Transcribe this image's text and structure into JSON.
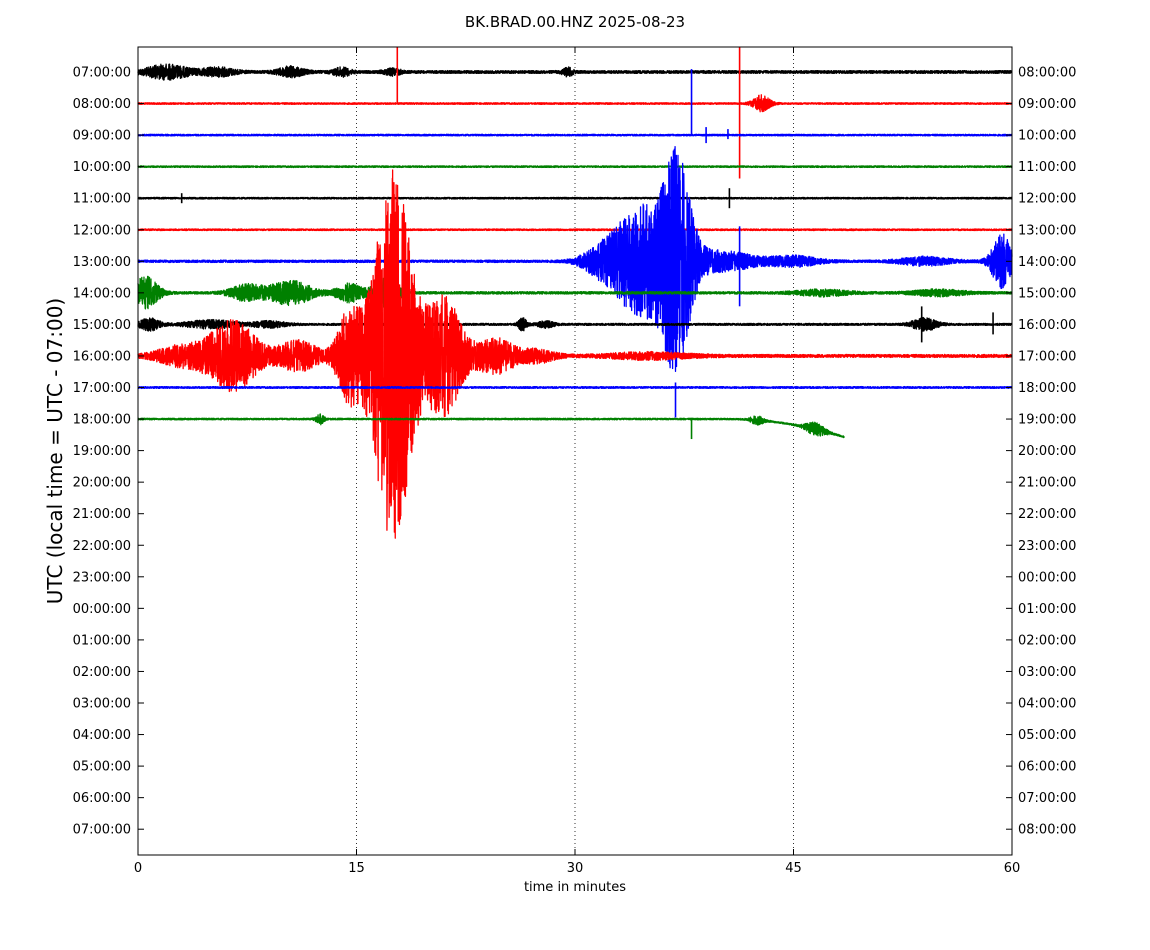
{
  "chart_data": {
    "type": "line",
    "title": "BK.BRAD.00.HNZ 2025-08-23",
    "xlabel": "time in minutes",
    "ylabel": "UTC (local time = UTC - 07:00)",
    "xlim": [
      0,
      60
    ],
    "x_ticks": [
      0,
      15,
      30,
      45,
      60
    ],
    "grid": "vertical dotted",
    "left_tick_labels": [
      "07:00:00",
      "08:00:00",
      "09:00:00",
      "10:00:00",
      "11:00:00",
      "12:00:00",
      "13:00:00",
      "14:00:00",
      "15:00:00",
      "16:00:00",
      "17:00:00",
      "18:00:00",
      "19:00:00",
      "20:00:00",
      "21:00:00",
      "22:00:00",
      "23:00:00",
      "00:00:00",
      "01:00:00",
      "02:00:00",
      "03:00:00",
      "04:00:00",
      "05:00:00",
      "06:00:00",
      "07:00:00"
    ],
    "right_tick_labels": [
      "08:00:00",
      "09:00:00",
      "10:00:00",
      "11:00:00",
      "12:00:00",
      "13:00:00",
      "14:00:00",
      "15:00:00",
      "16:00:00",
      "17:00:00",
      "18:00:00",
      "19:00:00",
      "20:00:00",
      "21:00:00",
      "22:00:00",
      "23:00:00",
      "00:00:00",
      "01:00:00",
      "02:00:00",
      "03:00:00",
      "04:00:00",
      "05:00:00",
      "06:00:00",
      "07:00:00",
      "08:00:00"
    ],
    "trace_colors": [
      "#000000",
      "#ff0000",
      "#0000ff",
      "#008000"
    ],
    "series": [
      {
        "row": 0,
        "hour": "07:00:00",
        "color": "#000000",
        "end_min": 60,
        "noise": 1.4,
        "events": [
          {
            "t": 2,
            "amp": 7,
            "dur": 2.5
          },
          {
            "t": 5.5,
            "amp": 4,
            "dur": 2
          },
          {
            "t": 10.5,
            "amp": 5,
            "dur": 1.5
          },
          {
            "t": 14,
            "amp": 4,
            "dur": 1
          },
          {
            "t": 17.5,
            "amp": 3,
            "dur": 1
          },
          {
            "t": 29.5,
            "amp": 4,
            "dur": 0.6
          }
        ]
      },
      {
        "row": 1,
        "hour": "08:00:00",
        "color": "#ff0000",
        "end_min": 60,
        "noise": 0.8,
        "events": [
          {
            "t": 42.8,
            "amp": 8,
            "dur": 1.0
          }
        ],
        "spikes": [
          {
            "t": 17.8,
            "up": 60,
            "down": 0
          },
          {
            "t": 41.3,
            "up": 60,
            "down": 75
          }
        ]
      },
      {
        "row": 2,
        "hour": "09:00:00",
        "color": "#0000ff",
        "end_min": 60,
        "noise": 0.8,
        "events": [],
        "spikes": [
          {
            "t": 38,
            "up": 66,
            "down": 0
          },
          {
            "t": 39,
            "up": 8,
            "down": 8
          },
          {
            "t": 40.5,
            "up": 6,
            "down": 4
          }
        ]
      },
      {
        "row": 3,
        "hour": "10:00:00",
        "color": "#008000",
        "end_min": 60,
        "noise": 0.8,
        "events": []
      },
      {
        "row": 4,
        "hour": "11:00:00",
        "color": "#000000",
        "end_min": 60,
        "noise": 0.8,
        "events": [],
        "spikes": [
          {
            "t": 3,
            "up": 5,
            "down": 5
          },
          {
            "t": 40.6,
            "up": 10,
            "down": 10
          }
        ]
      },
      {
        "row": 5,
        "hour": "12:00:00",
        "color": "#ff0000",
        "end_min": 60,
        "noise": 0.8,
        "events": []
      },
      {
        "row": 6,
        "hour": "13:00:00",
        "color": "#0000ff",
        "end_min": 60,
        "noise": 1.2,
        "events": [
          {
            "t": 31.5,
            "amp": 8,
            "dur": 2
          },
          {
            "t": 34.5,
            "amp": 55,
            "dur": 3.5
          },
          {
            "t": 37,
            "amp": 95,
            "dur": 1.8
          },
          {
            "t": 40,
            "amp": 10,
            "dur": 4
          },
          {
            "t": 45,
            "amp": 5,
            "dur": 3
          },
          {
            "t": 54,
            "amp": 4,
            "dur": 3
          },
          {
            "t": 59.3,
            "amp": 28,
            "dur": 1.2
          }
        ],
        "spikes": [
          {
            "t": 41.3,
            "up": 35,
            "down": 45
          }
        ]
      },
      {
        "row": 7,
        "hour": "14:00:00",
        "color": "#008000",
        "end_min": 60,
        "noise": 1.2,
        "events": [
          {
            "t": 0.5,
            "amp": 16,
            "dur": 1.5
          },
          {
            "t": 7.5,
            "amp": 8,
            "dur": 2
          },
          {
            "t": 10.5,
            "amp": 12,
            "dur": 2.5
          },
          {
            "t": 14.5,
            "amp": 9,
            "dur": 1.5
          },
          {
            "t": 17,
            "amp": 14,
            "dur": 1.5
          },
          {
            "t": 47,
            "amp": 3,
            "dur": 3
          },
          {
            "t": 55,
            "amp": 3,
            "dur": 3
          }
        ]
      },
      {
        "row": 8,
        "hour": "15:00:00",
        "color": "#000000",
        "end_min": 60,
        "noise": 1.0,
        "events": [
          {
            "t": 0.8,
            "amp": 6,
            "dur": 1.2
          },
          {
            "t": 5,
            "amp": 4,
            "dur": 3
          },
          {
            "t": 9,
            "amp": 3,
            "dur": 2
          },
          {
            "t": 26.4,
            "amp": 6,
            "dur": 0.5
          },
          {
            "t": 28,
            "amp": 3,
            "dur": 1
          },
          {
            "t": 54,
            "amp": 6,
            "dur": 1.5
          }
        ],
        "spikes": [
          {
            "t": 53.8,
            "up": 18,
            "down": 18
          },
          {
            "t": 58.7,
            "up": 12,
            "down": 10
          }
        ]
      },
      {
        "row": 9,
        "hour": "16:00:00",
        "color": "#ff0000",
        "end_min": 60,
        "noise": 1.5,
        "events": [
          {
            "t": 3,
            "amp": 10,
            "dur": 3
          },
          {
            "t": 6.5,
            "amp": 35,
            "dur": 3
          },
          {
            "t": 11,
            "amp": 15,
            "dur": 2.5
          },
          {
            "t": 14.5,
            "amp": 45,
            "dur": 1.5
          },
          {
            "t": 17.5,
            "amp": 185,
            "dur": 2.5
          },
          {
            "t": 21,
            "amp": 60,
            "dur": 2.2
          },
          {
            "t": 24.5,
            "amp": 18,
            "dur": 2.5
          },
          {
            "t": 27.5,
            "amp": 6,
            "dur": 2
          },
          {
            "t": 35,
            "amp": 3,
            "dur": 5
          }
        ]
      },
      {
        "row": 10,
        "hour": "17:00:00",
        "color": "#0000ff",
        "end_min": 60,
        "noise": 0.9,
        "events": [],
        "spikes": [
          {
            "t": 36.9,
            "up": 5,
            "down": 30
          }
        ]
      },
      {
        "row": 11,
        "hour": "18:00:00",
        "color": "#008000",
        "end_min": 48.5,
        "noise": 0.8,
        "events": [
          {
            "t": 12.5,
            "amp": 5,
            "dur": 0.5
          },
          {
            "t": 42.5,
            "amp": 4,
            "dur": 0.8
          },
          {
            "t": 46.5,
            "amp": 6,
            "dur": 1.2
          }
        ],
        "spikes": [
          {
            "t": 38,
            "up": 0,
            "down": 20
          }
        ]
      }
    ]
  }
}
